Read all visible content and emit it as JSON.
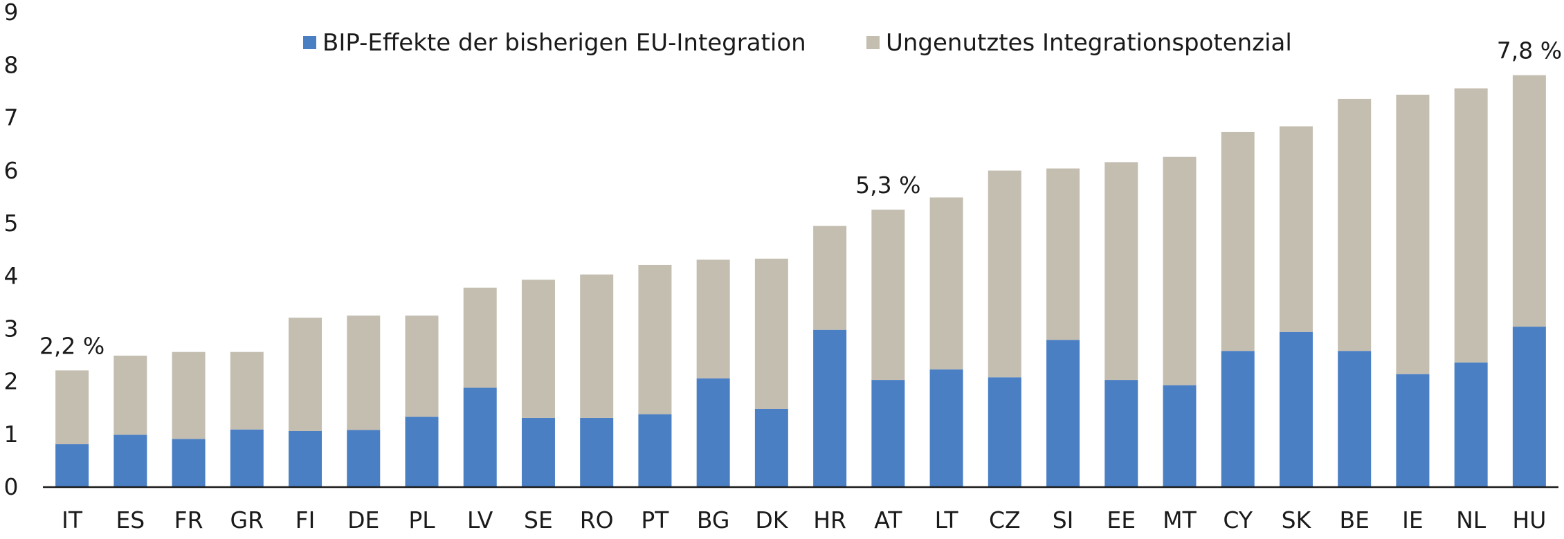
{
  "chart_data": {
    "type": "bar",
    "stacked": true,
    "categories": [
      "IT",
      "ES",
      "FR",
      "GR",
      "FI",
      "DE",
      "PL",
      "LV",
      "SE",
      "RO",
      "PT",
      "BG",
      "DK",
      "HR",
      "AT",
      "LT",
      "CZ",
      "SI",
      "EE",
      "MT",
      "CY",
      "SK",
      "BE",
      "IE",
      "NL",
      "HU"
    ],
    "series": [
      {
        "name": "BIP-Effekte der bisherigen EU-Integration",
        "color": "#4a7fc4",
        "values": [
          0.8,
          0.98,
          0.9,
          1.08,
          1.05,
          1.07,
          1.32,
          1.87,
          1.3,
          1.3,
          1.37,
          2.05,
          1.47,
          2.97,
          2.02,
          2.22,
          2.07,
          2.78,
          2.02,
          1.92,
          2.57,
          2.93,
          2.57,
          2.13,
          2.35,
          3.03
        ]
      },
      {
        "name": "Ungenutztes Integrationspotenzial",
        "color": "#c4beb1",
        "values": [
          1.4,
          1.5,
          1.65,
          1.47,
          2.15,
          2.17,
          1.92,
          1.9,
          2.62,
          2.72,
          2.83,
          2.25,
          2.85,
          1.97,
          3.23,
          3.26,
          3.92,
          3.25,
          4.13,
          4.33,
          4.15,
          3.9,
          4.78,
          5.3,
          5.2,
          4.77
        ]
      }
    ],
    "annotations": [
      {
        "category": "IT",
        "text": "2,2 %"
      },
      {
        "category": "AT",
        "text": "5,3 %"
      },
      {
        "category": "HU",
        "text": "7,8 %"
      }
    ],
    "ylim": [
      0,
      9
    ],
    "yticks": [
      0,
      1,
      2,
      3,
      4,
      5,
      6,
      7,
      8,
      9
    ],
    "title": "",
    "xlabel": "",
    "ylabel": "",
    "grid": false,
    "legend_position": "top"
  }
}
